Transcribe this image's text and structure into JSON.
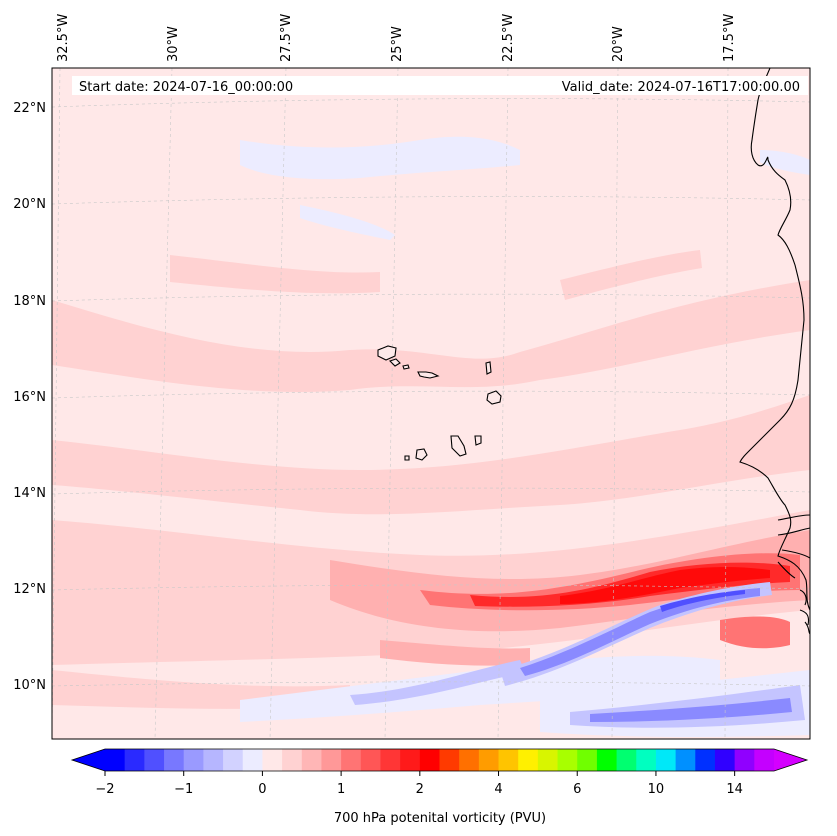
{
  "map": {
    "header": {
      "start_date": "Start date: 2024-07-16_00:00:00",
      "valid_date": "Valid_date: 2024-07-16T17:00:00.00"
    },
    "lon_labels": [
      "32.5°W",
      "30°W",
      "27.5°W",
      "25°W",
      "22.5°W",
      "20°W",
      "17.5°W"
    ],
    "lat_labels": [
      "22°N",
      "20°N",
      "18°N",
      "16°N",
      "14°N",
      "12°N",
      "10°N"
    ],
    "colorbar": {
      "title": "700 hPa potenital vorticity (PVU)",
      "tick_labels": [
        "−2",
        "−1",
        "0",
        "1",
        "2",
        "4",
        "6",
        "10",
        "14"
      ],
      "colors": [
        "#0000ff",
        "#2a2aff",
        "#5050ff",
        "#7878ff",
        "#9a9aff",
        "#b6b6ff",
        "#d2d2ff",
        "#ececff",
        "#ffe8e8",
        "#ffd2d2",
        "#ffb6b6",
        "#ff9898",
        "#ff7474",
        "#ff5656",
        "#ff3636",
        "#ff1a1a",
        "#ff0000",
        "#ff3a00",
        "#ff7000",
        "#ff9c00",
        "#ffc400",
        "#fff000",
        "#d8f500",
        "#a8ff00",
        "#70ff00",
        "#00ff00",
        "#00ff70",
        "#00ffc0",
        "#00e8f8",
        "#0090ff",
        "#0030ff",
        "#3000ff",
        "#9000ff",
        "#c400ff"
      ],
      "under_color": "#0000ff",
      "over_color": "#d400ff"
    },
    "field_colors": {
      "background": "#ffe8e8",
      "weak_pos": "#ffd2d2",
      "mid_pos": "#ffb0b0",
      "strong_pos": "#ff7474",
      "core_pos": "#ff2a2a",
      "peak_pos": "#ff0a0a",
      "weak_neg": "#ececff",
      "mid_neg": "#c4c4ff",
      "strong_neg": "#8a8aff",
      "core_neg": "#5050ff"
    }
  }
}
